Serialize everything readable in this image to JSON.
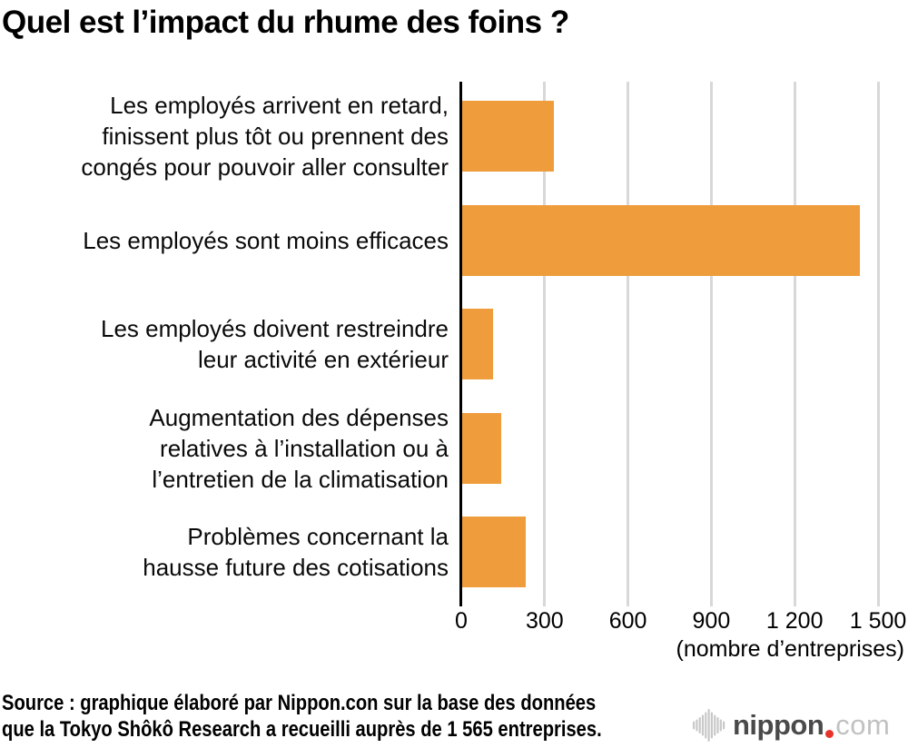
{
  "title": "Quel est l’impact du rhume des foins ?",
  "chart_data": {
    "type": "bar",
    "orientation": "horizontal",
    "title": "Quel est l’impact du rhume des foins ?",
    "categories": [
      "Les employés arrivent en retard,\nfinissent plus tôt ou prennent des\ncongés pour pouvoir aller consulter",
      "Les employés sont moins efficaces",
      "Les employés doivent restreindre\nleur activité en extérieur",
      "Augmentation des dépenses\nrelatives à l’installation ou à\nl’entretien de la climatisation",
      "Problèmes concernant la\nhausse future des cotisations"
    ],
    "values": [
      330,
      1430,
      110,
      140,
      230
    ],
    "xlim": [
      0,
      1500
    ],
    "xtick_values": [
      0,
      300,
      600,
      900,
      1200,
      1500
    ],
    "xtick_labels": [
      "0",
      "300",
      "600",
      "900",
      "1 200",
      "1 500"
    ],
    "xlabel": "(nombre d’entreprises)",
    "grid": true,
    "legend": false,
    "bar_color": "#EF9D3C",
    "gridline_color": "#D8D8D8",
    "axis_color": "#000000"
  },
  "source": {
    "text": "Source : graphique élaboré par Nippon.con sur la base des données\nque la Tokyo Shôkô Research a recueilli auprès de 1 565 entreprises."
  },
  "logo": {
    "icon": "soundwave-bars-icon",
    "name_bold": "nippon",
    "name_light": "com",
    "color_dark": "#4A4A4A",
    "color_light": "#C1C1C1",
    "color_red": "#E8342B",
    "icon_color": "#C8C8C8"
  }
}
